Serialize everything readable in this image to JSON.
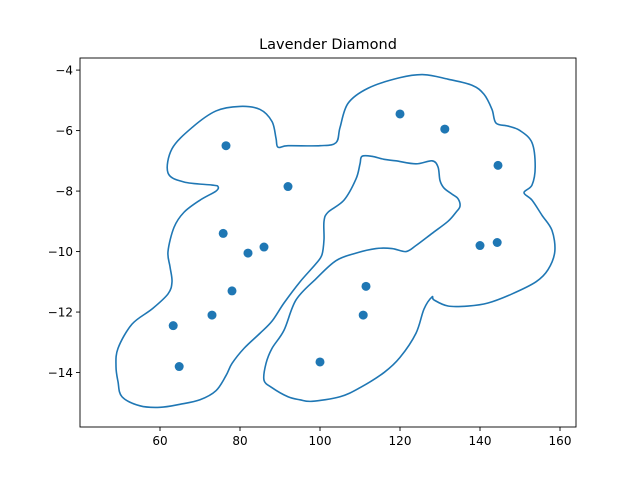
{
  "chart_data": {
    "type": "scatter",
    "title": "Lavender Diamond",
    "xlabel": "",
    "ylabel": "",
    "xlim": [
      40,
      164
    ],
    "ylim": [
      -15.8,
      -3.6
    ],
    "xticks": [
      60,
      80,
      100,
      120,
      140,
      160
    ],
    "yticks": [
      -4,
      -6,
      -8,
      -10,
      -12,
      -14
    ],
    "grid": false,
    "colors": {
      "points": "#1f77b4",
      "contour": "#1f77b4"
    },
    "points": [
      {
        "x": 63.3,
        "y": -12.45
      },
      {
        "x": 64.8,
        "y": -13.8
      },
      {
        "x": 73.0,
        "y": -12.1
      },
      {
        "x": 75.8,
        "y": -9.4
      },
      {
        "x": 76.5,
        "y": -6.5
      },
      {
        "x": 78.0,
        "y": -11.3
      },
      {
        "x": 82.0,
        "y": -10.05
      },
      {
        "x": 86.0,
        "y": -9.85
      },
      {
        "x": 92.0,
        "y": -7.85
      },
      {
        "x": 100.0,
        "y": -13.65
      },
      {
        "x": 110.8,
        "y": -12.1
      },
      {
        "x": 111.5,
        "y": -11.15
      },
      {
        "x": 120.0,
        "y": -5.45
      },
      {
        "x": 131.2,
        "y": -5.95
      },
      {
        "x": 140.0,
        "y": -9.8
      },
      {
        "x": 144.3,
        "y": -9.7
      },
      {
        "x": 144.5,
        "y": -7.15
      }
    ],
    "contours": [
      [
        [
          49.5,
          -13.2
        ],
        [
          53,
          -12.4
        ],
        [
          58,
          -11.9
        ],
        [
          62,
          -11.4
        ],
        [
          63,
          -11.0
        ],
        [
          62.5,
          -10.5
        ],
        [
          62,
          -10.0
        ],
        [
          63.5,
          -9.2
        ],
        [
          66,
          -8.7
        ],
        [
          70,
          -8.3
        ],
        [
          74,
          -8.0
        ],
        [
          74.5,
          -7.85
        ],
        [
          73,
          -7.8
        ],
        [
          66,
          -7.7
        ],
        [
          62,
          -7.4
        ],
        [
          63,
          -6.6
        ],
        [
          68,
          -5.9
        ],
        [
          74,
          -5.35
        ],
        [
          80,
          -5.2
        ],
        [
          85,
          -5.3
        ],
        [
          88,
          -5.7
        ],
        [
          89,
          -6.25
        ],
        [
          89.5,
          -6.55
        ],
        [
          92,
          -6.5
        ],
        [
          100,
          -6.5
        ],
        [
          104,
          -6.4
        ],
        [
          105,
          -5.9
        ],
        [
          107,
          -5.1
        ],
        [
          112,
          -4.6
        ],
        [
          120,
          -4.25
        ],
        [
          126,
          -4.15
        ],
        [
          132,
          -4.3
        ],
        [
          138,
          -4.5
        ],
        [
          141,
          -4.8
        ],
        [
          143,
          -5.3
        ],
        [
          144,
          -5.75
        ],
        [
          147,
          -5.85
        ],
        [
          150,
          -6.0
        ],
        [
          153,
          -6.4
        ],
        [
          153.8,
          -7.2
        ],
        [
          153,
          -7.8
        ],
        [
          151,
          -8.05
        ],
        [
          153,
          -8.3
        ],
        [
          155.5,
          -8.8
        ],
        [
          158,
          -9.3
        ],
        [
          158.7,
          -10.0
        ],
        [
          157,
          -10.6
        ],
        [
          154,
          -11.0
        ],
        [
          148,
          -11.4
        ],
        [
          142,
          -11.7
        ],
        [
          137,
          -11.8
        ],
        [
          132,
          -11.8
        ],
        [
          128.5,
          -11.6
        ],
        [
          128,
          -11.5
        ],
        [
          126,
          -11.9
        ],
        [
          124,
          -12.7
        ],
        [
          120,
          -13.5
        ],
        [
          116,
          -14.0
        ],
        [
          110,
          -14.5
        ],
        [
          105,
          -14.8
        ],
        [
          98,
          -14.95
        ],
        [
          95,
          -14.9
        ],
        [
          92,
          -14.8
        ],
        [
          88,
          -14.5
        ],
        [
          86,
          -14.25
        ],
        [
          86.5,
          -13.7
        ],
        [
          88,
          -13.2
        ],
        [
          91,
          -12.6
        ],
        [
          94,
          -11.6
        ],
        [
          99,
          -10.9
        ],
        [
          104,
          -10.3
        ],
        [
          109,
          -10.05
        ],
        [
          114,
          -9.9
        ],
        [
          118,
          -9.9
        ],
        [
          121.5,
          -10.0
        ],
        [
          124,
          -9.8
        ],
        [
          128,
          -9.4
        ],
        [
          132,
          -9.0
        ],
        [
          134,
          -8.7
        ],
        [
          135,
          -8.5
        ],
        [
          134.5,
          -8.25
        ],
        [
          133,
          -8.1
        ],
        [
          131,
          -7.9
        ],
        [
          130,
          -7.65
        ],
        [
          129.5,
          -7.2
        ],
        [
          128,
          -7.0
        ],
        [
          124,
          -7.1
        ],
        [
          119,
          -7.0
        ],
        [
          116,
          -6.95
        ],
        [
          113,
          -6.85
        ],
        [
          110.5,
          -6.85
        ],
        [
          110,
          -7.1
        ],
        [
          109,
          -7.6
        ],
        [
          106,
          -8.3
        ],
        [
          102,
          -8.7
        ],
        [
          101,
          -9.0
        ],
        [
          101,
          -9.6
        ],
        [
          100.5,
          -10.1
        ],
        [
          99,
          -10.4
        ],
        [
          95,
          -11.0
        ],
        [
          91,
          -11.7
        ],
        [
          88,
          -12.3
        ],
        [
          85,
          -12.7
        ],
        [
          81,
          -13.2
        ],
        [
          78,
          -13.7
        ],
        [
          76.5,
          -14.1
        ],
        [
          74,
          -14.6
        ],
        [
          70,
          -14.9
        ],
        [
          65,
          -15.05
        ],
        [
          60,
          -15.15
        ],
        [
          55,
          -15.1
        ],
        [
          50.5,
          -14.8
        ],
        [
          49.5,
          -14.3
        ],
        [
          49.0,
          -13.8
        ],
        [
          49.5,
          -13.2
        ]
      ]
    ]
  }
}
